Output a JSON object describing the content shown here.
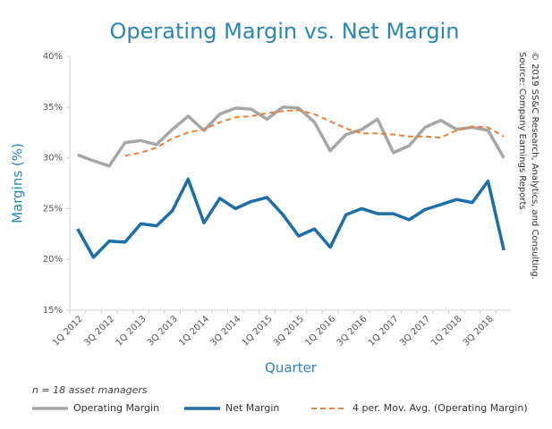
{
  "chart_data": {
    "type": "line",
    "title": "Operating Margin vs. Net Margin",
    "y_label": "Margins (%)",
    "x_label": "Quarter",
    "note": "n = 18 asset managers",
    "source": [
      "© 2019 SS&C Research, Analytics, and Consulting.",
      "Source: Company Earnings Reports"
    ],
    "categories": [
      "1Q 2012",
      null,
      "3Q 2012",
      null,
      "1Q 2013",
      null,
      "3Q 2013",
      null,
      "1Q 2014",
      null,
      "3Q 2014",
      null,
      "1Q 2015",
      null,
      "3Q 2015",
      null,
      "1Q 2016",
      null,
      "3Q 2016",
      null,
      "1Q 2017",
      null,
      "3Q 2017",
      null,
      "1Q 2018",
      null,
      "3Q 2018",
      null
    ],
    "series": [
      {
        "name": "Operating Margin",
        "color": "#a6a6a6",
        "style": "solid",
        "values": [
          30.3,
          29.7,
          29.2,
          31.5,
          31.7,
          31.3,
          32.8,
          34.1,
          32.7,
          34.3,
          34.9,
          34.8,
          33.8,
          35.0,
          34.9,
          33.5,
          30.7,
          32.3,
          32.8,
          33.8,
          30.5,
          31.2,
          33.0,
          33.7,
          32.8,
          33.0,
          32.7,
          30.0
        ]
      },
      {
        "name": "Net Margin",
        "color": "#1c6ea8",
        "style": "solid",
        "values": [
          23.0,
          20.2,
          21.8,
          21.7,
          23.5,
          23.3,
          24.8,
          27.9,
          23.6,
          26.0,
          25.0,
          25.7,
          26.1,
          24.4,
          22.3,
          23.0,
          21.2,
          24.4,
          25.0,
          24.5,
          24.5,
          23.9,
          24.9,
          25.4,
          25.9,
          25.6,
          27.7,
          20.9
        ]
      },
      {
        "name": "4 per. Mov. Avg. (Operating Margin)",
        "color": "#e8823a",
        "style": "dashed",
        "values": [
          null,
          null,
          null,
          30.2,
          30.5,
          31.0,
          31.9,
          32.5,
          32.8,
          33.5,
          34.0,
          34.1,
          34.4,
          34.6,
          34.7,
          34.3,
          33.6,
          32.9,
          32.4,
          32.4,
          32.3,
          32.1,
          32.1,
          32.0,
          32.7,
          33.1,
          33.0,
          32.1
        ]
      }
    ],
    "ylim": [
      15,
      40
    ],
    "yticks": [
      {
        "value": 15,
        "label": "15%"
      },
      {
        "value": 20,
        "label": "20%"
      },
      {
        "value": 25,
        "label": "25%"
      },
      {
        "value": 30,
        "label": "30%"
      },
      {
        "value": 35,
        "label": "35%"
      },
      {
        "value": 40,
        "label": "40%"
      }
    ]
  }
}
